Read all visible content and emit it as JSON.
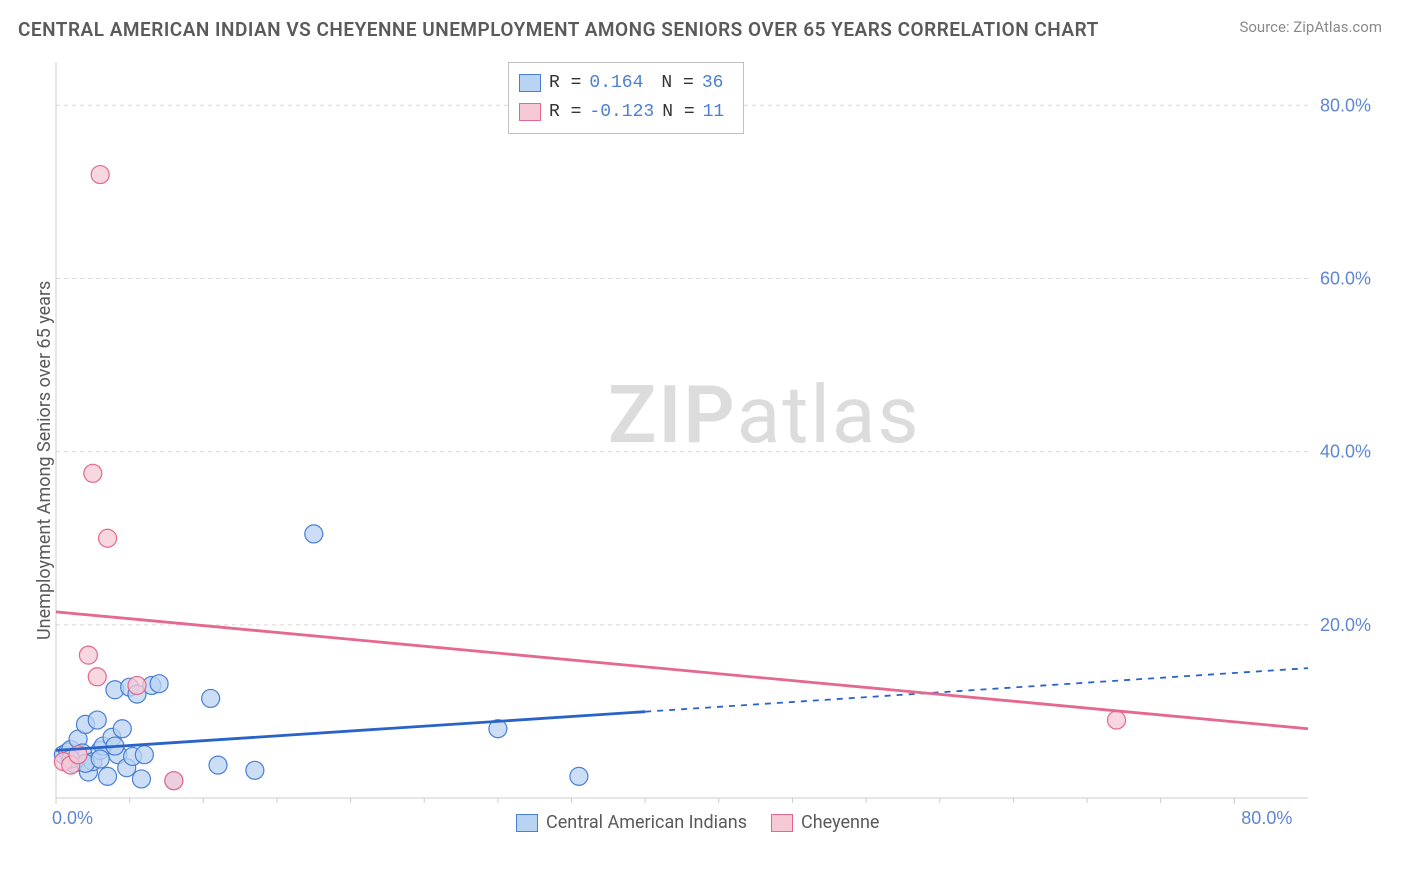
{
  "title": "CENTRAL AMERICAN INDIAN VS CHEYENNE UNEMPLOYMENT AMONG SENIORS OVER 65 YEARS CORRELATION CHART",
  "source": "Source: ZipAtlas.com",
  "y_axis_label": "Unemployment Among Seniors over 65 years",
  "watermark_bold": "ZIP",
  "watermark_light": "atlas",
  "chart": {
    "type": "scatter",
    "xlim": [
      0,
      85
    ],
    "ylim": [
      0,
      85
    ],
    "x_ticks": [
      {
        "val": 0,
        "label": "0.0%"
      },
      {
        "val": 80,
        "label": "80.0%"
      }
    ],
    "y_ticks": [
      {
        "val": 20,
        "label": "20.0%"
      },
      {
        "val": 40,
        "label": "40.0%"
      },
      {
        "val": 60,
        "label": "60.0%"
      },
      {
        "val": 80,
        "label": "80.0%"
      }
    ],
    "background_color": "#ffffff",
    "grid_color": "#d8d8d8",
    "border_color": "#cccccc",
    "marker_radius": 9,
    "marker_stroke_width": 1.2,
    "trend_line_width": 2.8,
    "series": [
      {
        "name": "Central American Indians",
        "fill": "#b9d3f2",
        "stroke": "#4a7fd4",
        "line_color": "#2a63c8",
        "R": "0.164",
        "N": "36",
        "points": [
          [
            0.5,
            5.0
          ],
          [
            0.8,
            5.3
          ],
          [
            1.0,
            5.6
          ],
          [
            1.2,
            4.0
          ],
          [
            1.5,
            6.8
          ],
          [
            1.8,
            5.2
          ],
          [
            2.0,
            8.5
          ],
          [
            2.2,
            3.0
          ],
          [
            2.5,
            4.2
          ],
          [
            2.8,
            9.0
          ],
          [
            3.0,
            5.5
          ],
          [
            3.2,
            6.0
          ],
          [
            3.5,
            2.5
          ],
          [
            3.8,
            7.0
          ],
          [
            4.0,
            12.5
          ],
          [
            4.2,
            5.0
          ],
          [
            4.5,
            8.0
          ],
          [
            4.8,
            3.5
          ],
          [
            5.0,
            12.8
          ],
          [
            5.2,
            4.8
          ],
          [
            5.5,
            12.0
          ],
          [
            5.8,
            2.2
          ],
          [
            6.0,
            5.0
          ],
          [
            6.5,
            13.0
          ],
          [
            7.0,
            13.2
          ],
          [
            8.0,
            2.0
          ],
          [
            10.5,
            11.5
          ],
          [
            11.0,
            3.8
          ],
          [
            13.5,
            3.2
          ],
          [
            17.5,
            30.5
          ],
          [
            30.0,
            8.0
          ],
          [
            35.5,
            2.5
          ],
          [
            1.0,
            4.5
          ],
          [
            2.0,
            4.0
          ],
          [
            3.0,
            4.5
          ],
          [
            4.0,
            6.0
          ]
        ],
        "trend": {
          "y_at_xmin": 5.5,
          "y_at_xmax": 15.0,
          "solid_until_x": 40
        }
      },
      {
        "name": "Cheyenne",
        "fill": "#f6c9d6",
        "stroke": "#e5688e",
        "line_color": "#e5688e",
        "R": "-0.123",
        "N": "11",
        "points": [
          [
            0.5,
            4.2
          ],
          [
            1.0,
            3.8
          ],
          [
            1.5,
            5.0
          ],
          [
            2.2,
            16.5
          ],
          [
            2.5,
            37.5
          ],
          [
            2.8,
            14.0
          ],
          [
            3.0,
            72.0
          ],
          [
            3.5,
            30.0
          ],
          [
            5.5,
            13.0
          ],
          [
            8.0,
            2.0
          ],
          [
            72.0,
            9.0
          ]
        ],
        "trend": {
          "y_at_xmin": 21.5,
          "y_at_xmax": 8.0,
          "solid_until_x": 85
        }
      }
    ]
  },
  "legend_items": [
    {
      "label": "Central American Indians",
      "fill": "#b9d3f2",
      "stroke": "#4a7fd4"
    },
    {
      "label": "Cheyenne",
      "fill": "#f6c9d6",
      "stroke": "#e5688e"
    }
  ]
}
